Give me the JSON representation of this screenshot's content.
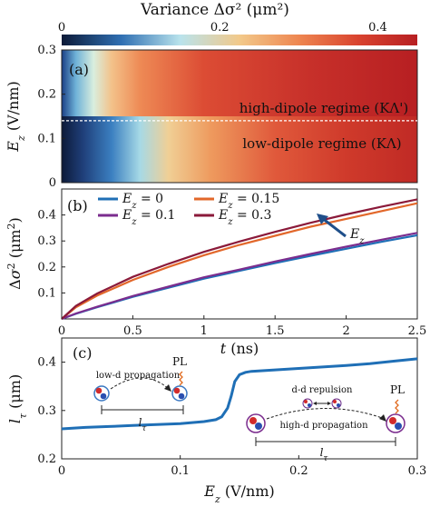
{
  "colorbar": {
    "title": "Variance  Δσ² (μm²)",
    "ticks": [
      0,
      0.2,
      0.4
    ],
    "tick_labels": [
      "0",
      "0.2",
      "0.4"
    ],
    "range": [
      0,
      0.45
    ],
    "colors": [
      "#0d1a38",
      "#2f6fb2",
      "#b9e3ec",
      "#f2c98a",
      "#ee8650",
      "#d9432f",
      "#b71f22"
    ]
  },
  "chart_data": [
    {
      "type": "heatmap",
      "panel": "(a)",
      "xlim": [
        0,
        2.5
      ],
      "ylim": [
        0,
        0.3
      ],
      "ylabel": "E_z (V/nm)",
      "yticks": [
        0,
        0.1,
        0.2,
        0.3
      ],
      "ytick_labels": [
        "0",
        "0.1",
        "0.2",
        "0.3"
      ],
      "boundary_Ez": 0.14,
      "annotations": [
        "high-dipole regime (KΛ')",
        "low-dipole regime (KΛ)"
      ],
      "grid": false
    },
    {
      "type": "line",
      "panel": "(b)",
      "xlabel": "t (ns)",
      "ylabel": "Δσ² (μm²)",
      "xlim": [
        0,
        2.5
      ],
      "ylim": [
        0,
        0.5
      ],
      "xticks": [
        0,
        0.5,
        1,
        1.5,
        2,
        2.5
      ],
      "xtick_labels": [
        "0",
        "0.5",
        "1",
        "1.5",
        "2",
        "2.5"
      ],
      "yticks": [
        0.1,
        0.2,
        0.3,
        0.4
      ],
      "ytick_labels": [
        "0.1",
        "0.2",
        "0.3",
        "0.4"
      ],
      "legend_position": "top-left",
      "arrow_label": "E_z",
      "x": [
        0,
        0.1,
        0.25,
        0.5,
        0.75,
        1.0,
        1.25,
        1.5,
        1.75,
        2.0,
        2.25,
        2.5
      ],
      "series": [
        {
          "name": "E_z = 0",
          "color": "#1f6fb6",
          "values": [
            0,
            0.02,
            0.045,
            0.085,
            0.12,
            0.155,
            0.185,
            0.215,
            0.243,
            0.27,
            0.297,
            0.322
          ]
        },
        {
          "name": "E_z = 0.15",
          "color": "#e2672a",
          "values": [
            0,
            0.045,
            0.09,
            0.15,
            0.2,
            0.245,
            0.285,
            0.32,
            0.355,
            0.385,
            0.415,
            0.445
          ]
        },
        {
          "name": "E_z = 0.1",
          "color": "#7b2d8e",
          "values": [
            0,
            0.021,
            0.047,
            0.088,
            0.124,
            0.16,
            0.19,
            0.221,
            0.25,
            0.278,
            0.305,
            0.331
          ]
        },
        {
          "name": "E_z = 0.3",
          "color": "#8b1a3a",
          "values": [
            0,
            0.05,
            0.098,
            0.162,
            0.212,
            0.258,
            0.298,
            0.335,
            0.37,
            0.402,
            0.432,
            0.46
          ]
        }
      ]
    },
    {
      "type": "line",
      "panel": "(c)",
      "xlabel": "E_z (V/nm)",
      "ylabel": "l_τ (μm)",
      "xlim": [
        0,
        0.3
      ],
      "ylim": [
        0.2,
        0.45
      ],
      "xticks": [
        0,
        0.1,
        0.2,
        0.3
      ],
      "xtick_labels": [
        "0",
        "0.1",
        "0.2",
        "0.3"
      ],
      "yticks": [
        0.2,
        0.3,
        0.4
      ],
      "ytick_labels": [
        "0.2",
        "0.3",
        "0.4"
      ],
      "series": [
        {
          "name": "",
          "color": "#1f6fb6",
          "x": [
            0,
            0.02,
            0.04,
            0.06,
            0.08,
            0.1,
            0.11,
            0.12,
            0.13,
            0.135,
            0.14,
            0.143,
            0.146,
            0.15,
            0.155,
            0.16,
            0.18,
            0.2,
            0.22,
            0.24,
            0.26,
            0.28,
            0.3
          ],
          "values": [
            0.262,
            0.265,
            0.267,
            0.269,
            0.271,
            0.273,
            0.275,
            0.277,
            0.281,
            0.287,
            0.305,
            0.33,
            0.36,
            0.374,
            0.379,
            0.381,
            0.384,
            0.387,
            0.39,
            0.393,
            0.397,
            0.402,
            0.407
          ]
        }
      ],
      "annotations": [
        "low-d propagation",
        "PL",
        "l_τ",
        "d-d repulsion",
        "high-d propagation",
        "PL",
        "l_τ"
      ]
    }
  ]
}
